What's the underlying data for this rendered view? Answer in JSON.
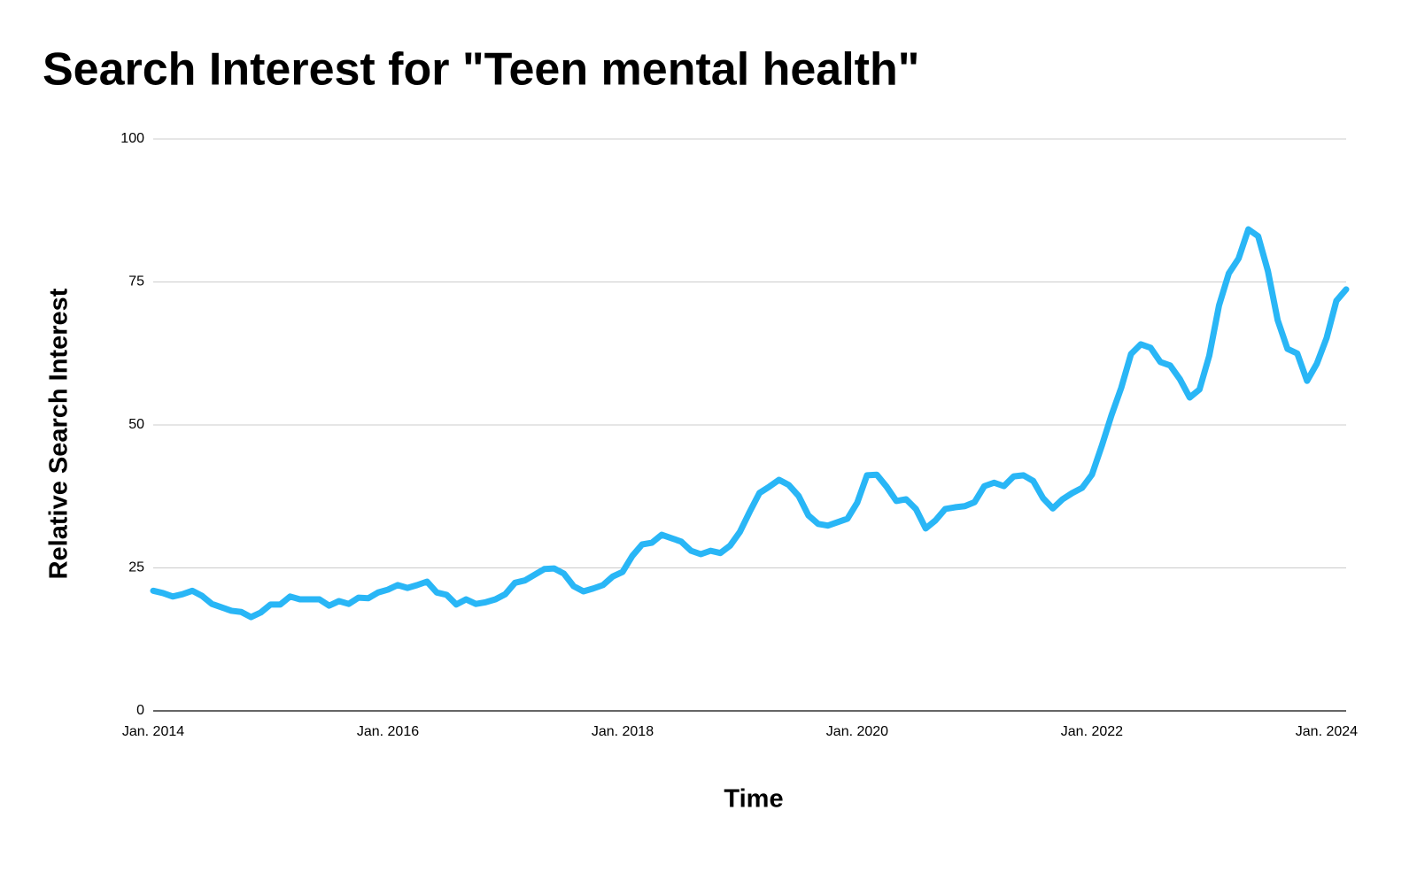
{
  "chart_data": {
    "type": "line",
    "title": "Search Interest for \"Teen mental health\"",
    "x_label": "Time",
    "y_label": "Relative Search Interest",
    "x": [
      "2014-01",
      "2014-02",
      "2014-03",
      "2014-04",
      "2014-05",
      "2014-06",
      "2014-07",
      "2014-08",
      "2014-09",
      "2014-10",
      "2014-11",
      "2014-12",
      "2015-01",
      "2015-02",
      "2015-03",
      "2015-04",
      "2015-05",
      "2015-06",
      "2015-07",
      "2015-08",
      "2015-09",
      "2015-10",
      "2015-11",
      "2015-12",
      "2016-01",
      "2016-02",
      "2016-03",
      "2016-04",
      "2016-05",
      "2016-06",
      "2016-07",
      "2016-08",
      "2016-09",
      "2016-10",
      "2016-11",
      "2016-12",
      "2017-01",
      "2017-02",
      "2017-03",
      "2017-04",
      "2017-05",
      "2017-06",
      "2017-07",
      "2017-08",
      "2017-09",
      "2017-10",
      "2017-11",
      "2017-12",
      "2018-01",
      "2018-02",
      "2018-03",
      "2018-04",
      "2018-05",
      "2018-06",
      "2018-07",
      "2018-08",
      "2018-09",
      "2018-10",
      "2018-11",
      "2018-12",
      "2019-01",
      "2019-02",
      "2019-03",
      "2019-04",
      "2019-05",
      "2019-06",
      "2019-07",
      "2019-08",
      "2019-09",
      "2019-10",
      "2019-11",
      "2019-12",
      "2020-01",
      "2020-02",
      "2020-03",
      "2020-04",
      "2020-05",
      "2020-06",
      "2020-07",
      "2020-08",
      "2020-09",
      "2020-10",
      "2020-11",
      "2020-12",
      "2021-01",
      "2021-02",
      "2021-03",
      "2021-04",
      "2021-05",
      "2021-06",
      "2021-07",
      "2021-08",
      "2021-09",
      "2021-10",
      "2021-11",
      "2021-12",
      "2022-01",
      "2022-02",
      "2022-03",
      "2022-04",
      "2022-05",
      "2022-06",
      "2022-07",
      "2022-08",
      "2022-09",
      "2022-10",
      "2022-11",
      "2022-12",
      "2023-01",
      "2023-02",
      "2023-03",
      "2023-04",
      "2023-05",
      "2023-06",
      "2023-07",
      "2023-08",
      "2023-09",
      "2023-10",
      "2023-11",
      "2023-12",
      "2024-01",
      "2024-02",
      "2024-03"
    ],
    "series": [
      {
        "name": "Teen mental health",
        "color": "#29b6f6",
        "values": [
          21.0,
          20.6,
          20.0,
          20.4,
          21.0,
          20.1,
          18.7,
          18.1,
          17.5,
          17.3,
          16.4,
          17.2,
          18.6,
          18.6,
          20.0,
          19.5,
          19.5,
          19.5,
          18.4,
          19.2,
          18.7,
          19.8,
          19.7,
          20.7,
          21.2,
          22.0,
          21.5,
          22.0,
          22.6,
          20.7,
          20.3,
          18.6,
          19.5,
          18.7,
          19.0,
          19.5,
          20.4,
          22.4,
          22.8,
          23.8,
          24.8,
          24.9,
          24.0,
          21.8,
          20.9,
          21.4,
          22.0,
          23.5,
          24.3,
          27.1,
          29.1,
          29.4,
          30.8,
          30.2,
          29.6,
          28.0,
          27.4,
          28.0,
          27.6,
          28.9,
          31.3,
          34.8,
          38.1,
          39.2,
          40.4,
          39.5,
          37.6,
          34.2,
          32.7,
          32.4,
          33.0,
          33.6,
          36.4,
          41.2,
          41.3,
          39.2,
          36.7,
          37.0,
          35.3,
          31.9,
          33.3,
          35.3,
          35.6,
          35.8,
          36.5,
          39.3,
          39.9,
          39.3,
          41.0,
          41.2,
          40.2,
          37.2,
          35.4,
          37.0,
          38.1,
          39.0,
          41.3,
          46.3,
          51.7,
          56.5,
          62.4,
          64.1,
          63.5,
          61.0,
          60.4,
          58.0,
          54.8,
          56.2,
          62.1,
          70.9,
          76.5,
          79.1,
          84.2,
          83.0,
          76.9,
          68.3,
          63.3,
          62.5,
          57.7,
          60.7,
          65.2,
          71.7,
          73.7
        ]
      }
    ],
    "xlim": [
      "2014-01",
      "2024-03"
    ],
    "xticks": [
      {
        "value": "2014-01",
        "label": "Jan. 2014"
      },
      {
        "value": "2016-01",
        "label": "Jan. 2016"
      },
      {
        "value": "2018-01",
        "label": "Jan. 2018"
      },
      {
        "value": "2020-01",
        "label": "Jan. 2020"
      },
      {
        "value": "2022-01",
        "label": "Jan. 2022"
      },
      {
        "value": "2024-01",
        "label": "Jan. 2024"
      }
    ],
    "ylim": [
      0,
      100
    ],
    "yticks": [
      0,
      25,
      50,
      75,
      100
    ],
    "grid": true
  }
}
